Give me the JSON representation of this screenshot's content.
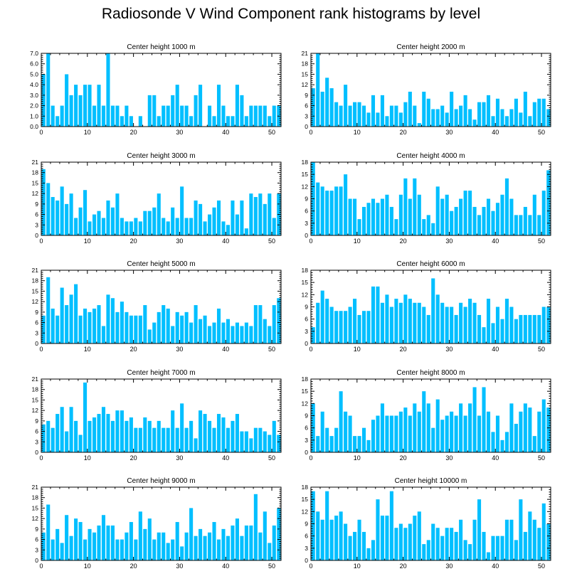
{
  "title": "Radiosonde V Wind Component rank histograms by level",
  "style": {
    "bar_color": "#00BFFF",
    "axis_color": "#000000",
    "background": "#FFFFFF"
  },
  "chart_data": [
    {
      "type": "bar",
      "title": "Center height 1000 m",
      "xlim": [
        0,
        52
      ],
      "ylim": [
        0,
        7
      ],
      "xticks": [
        0,
        10,
        20,
        30,
        40,
        50
      ],
      "yticks": [
        "0.0",
        "1.0",
        "2.0",
        "3.0",
        "4.0",
        "5.0",
        "6.0",
        "7.0"
      ],
      "values": [
        5,
        7,
        2,
        1,
        2,
        5,
        3,
        4,
        3,
        4,
        4,
        2,
        4,
        2,
        7,
        2,
        2,
        1,
        2,
        1,
        0,
        1,
        0,
        3,
        3,
        1,
        2,
        2,
        3,
        4,
        2,
        2,
        1,
        3,
        4,
        0,
        2,
        1,
        4,
        2,
        1,
        1,
        4,
        3,
        1,
        2,
        2,
        2,
        2,
        1,
        2,
        2
      ]
    },
    {
      "type": "bar",
      "title": "Center height 2000 m",
      "xlim": [
        0,
        52
      ],
      "ylim": [
        0,
        21
      ],
      "xticks": [
        0,
        10,
        20,
        30,
        40,
        50
      ],
      "yticks": [
        "0",
        "3",
        "6",
        "9",
        "12",
        "15",
        "18",
        "21"
      ],
      "values": [
        11,
        21,
        10,
        14,
        11,
        7,
        6,
        12,
        6,
        7,
        7,
        6,
        4,
        9,
        4,
        9,
        3,
        6,
        6,
        4,
        7,
        10,
        6,
        1,
        10,
        8,
        5,
        5,
        6,
        4,
        10,
        5,
        6,
        9,
        5,
        2,
        7,
        7,
        9,
        3,
        8,
        5,
        3,
        5,
        8,
        4,
        10,
        3,
        7,
        8,
        8,
        5
      ]
    },
    {
      "type": "bar",
      "title": "Center height 3000 m",
      "xlim": [
        0,
        52
      ],
      "ylim": [
        0,
        21
      ],
      "xticks": [
        0,
        10,
        20,
        30,
        40,
        50
      ],
      "yticks": [
        "0",
        "3",
        "6",
        "9",
        "12",
        "15",
        "18",
        "21"
      ],
      "values": [
        19,
        15,
        11,
        10,
        14,
        9,
        12,
        5,
        8,
        13,
        4,
        6,
        7,
        5,
        10,
        8,
        12,
        5,
        4,
        4,
        5,
        4,
        7,
        7,
        8,
        12,
        5,
        4,
        8,
        5,
        14,
        5,
        5,
        10,
        9,
        4,
        6,
        8,
        10,
        4,
        3,
        10,
        6,
        10,
        2,
        12,
        11,
        12,
        9,
        12,
        5,
        12
      ]
    },
    {
      "type": "bar",
      "title": "Center height 4000 m",
      "xlim": [
        0,
        52
      ],
      "ylim": [
        0,
        18
      ],
      "xticks": [
        0,
        10,
        20,
        30,
        40,
        50
      ],
      "yticks": [
        "0",
        "3",
        "6",
        "9",
        "12",
        "15",
        "18"
      ],
      "values": [
        18,
        13,
        12,
        11,
        11,
        12,
        12,
        15,
        9,
        9,
        4,
        7,
        8,
        9,
        8,
        9,
        10,
        7,
        4,
        10,
        14,
        9,
        14,
        10,
        4,
        5,
        3,
        12,
        9,
        10,
        6,
        7,
        9,
        11,
        11,
        7,
        5,
        7,
        9,
        6,
        8,
        10,
        14,
        9,
        5,
        5,
        7,
        5,
        10,
        5,
        11,
        16
      ]
    },
    {
      "type": "bar",
      "title": "Center height 5000 m",
      "xlim": [
        0,
        52
      ],
      "ylim": [
        0,
        21
      ],
      "xticks": [
        0,
        10,
        20,
        30,
        40,
        50
      ],
      "yticks": [
        "0",
        "3",
        "6",
        "9",
        "12",
        "15",
        "18",
        "21"
      ],
      "values": [
        8,
        19,
        10,
        8,
        16,
        11,
        14,
        17,
        8,
        10,
        9,
        10,
        11,
        5,
        14,
        13,
        9,
        12,
        9,
        8,
        8,
        8,
        11,
        4,
        6,
        9,
        11,
        10,
        5,
        9,
        8,
        9,
        6,
        11,
        7,
        8,
        5,
        6,
        10,
        6,
        7,
        5,
        6,
        5,
        6,
        5,
        11,
        11,
        7,
        5,
        11,
        13
      ]
    },
    {
      "type": "bar",
      "title": "Center height 6000 m",
      "xlim": [
        0,
        52
      ],
      "ylim": [
        0,
        18
      ],
      "xticks": [
        0,
        10,
        20,
        30,
        40,
        50
      ],
      "yticks": [
        "0",
        "3",
        "6",
        "9",
        "12",
        "15",
        "18"
      ],
      "values": [
        4,
        10,
        13,
        11,
        9,
        8,
        8,
        8,
        9,
        11,
        7,
        8,
        8,
        14,
        14,
        10,
        12,
        9,
        11,
        10,
        12,
        11,
        10,
        10,
        9,
        7,
        16,
        12,
        10,
        9,
        9,
        7,
        10,
        9,
        11,
        10,
        7,
        4,
        11,
        5,
        9,
        6,
        11,
        9,
        6,
        7,
        7,
        7,
        7,
        7,
        9,
        9
      ]
    },
    {
      "type": "bar",
      "title": "Center height 7000 m",
      "xlim": [
        0,
        52
      ],
      "ylim": [
        0,
        21
      ],
      "xticks": [
        0,
        10,
        20,
        30,
        40,
        50
      ],
      "yticks": [
        "0",
        "3",
        "6",
        "9",
        "12",
        "15",
        "18",
        "21"
      ],
      "values": [
        8,
        9,
        7,
        11,
        13,
        6,
        13,
        9,
        5,
        20,
        9,
        10,
        11,
        13,
        11,
        9,
        12,
        12,
        9,
        10,
        7,
        7,
        10,
        9,
        7,
        9,
        7,
        7,
        12,
        7,
        14,
        7,
        9,
        4,
        12,
        11,
        9,
        7,
        11,
        10,
        7,
        9,
        11,
        6,
        6,
        4,
        7,
        7,
        6,
        5,
        9,
        5
      ]
    },
    {
      "type": "bar",
      "title": "Center height 8000 m",
      "xlim": [
        0,
        52
      ],
      "ylim": [
        0,
        18
      ],
      "xticks": [
        0,
        10,
        20,
        30,
        40,
        50
      ],
      "yticks": [
        "0",
        "3",
        "6",
        "9",
        "12",
        "15",
        "18"
      ],
      "values": [
        12,
        4,
        10,
        6,
        4,
        6,
        15,
        10,
        9,
        4,
        4,
        6,
        3,
        8,
        9,
        12,
        9,
        9,
        9,
        10,
        11,
        9,
        12,
        10,
        15,
        12,
        6,
        13,
        8,
        9,
        10,
        9,
        12,
        9,
        12,
        16,
        9,
        16,
        10,
        5,
        9,
        3,
        5,
        12,
        7,
        10,
        12,
        11,
        4,
        10,
        13,
        11
      ]
    },
    {
      "type": "bar",
      "title": "Center height 9000 m",
      "xlim": [
        0,
        52
      ],
      "ylim": [
        0,
        21
      ],
      "xticks": [
        0,
        10,
        20,
        30,
        40,
        50
      ],
      "yticks": [
        "0",
        "3",
        "6",
        "9",
        "12",
        "15",
        "18",
        "21"
      ],
      "values": [
        8,
        16,
        6,
        9,
        5,
        13,
        7,
        12,
        11,
        6,
        9,
        8,
        10,
        13,
        10,
        10,
        6,
        6,
        8,
        11,
        6,
        14,
        9,
        12,
        6,
        8,
        8,
        5,
        6,
        11,
        4,
        8,
        15,
        7,
        9,
        7,
        8,
        11,
        6,
        9,
        7,
        10,
        12,
        7,
        10,
        10,
        19,
        8,
        14,
        5,
        10,
        15
      ]
    },
    {
      "type": "bar",
      "title": "Center height 10000 m",
      "xlim": [
        0,
        52
      ],
      "ylim": [
        0,
        18
      ],
      "xticks": [
        0,
        10,
        20,
        30,
        40,
        50
      ],
      "yticks": [
        "0",
        "3",
        "6",
        "9",
        "12",
        "15",
        "18"
      ],
      "values": [
        17,
        12,
        10,
        17,
        10,
        11,
        12,
        9,
        6,
        7,
        10,
        7,
        3,
        5,
        15,
        11,
        11,
        17,
        8,
        9,
        8,
        9,
        11,
        12,
        4,
        5,
        9,
        8,
        6,
        8,
        8,
        7,
        10,
        5,
        4,
        10,
        15,
        7,
        2,
        6,
        6,
        6,
        10,
        10,
        5,
        15,
        7,
        12,
        10,
        8,
        14,
        9
      ]
    }
  ]
}
